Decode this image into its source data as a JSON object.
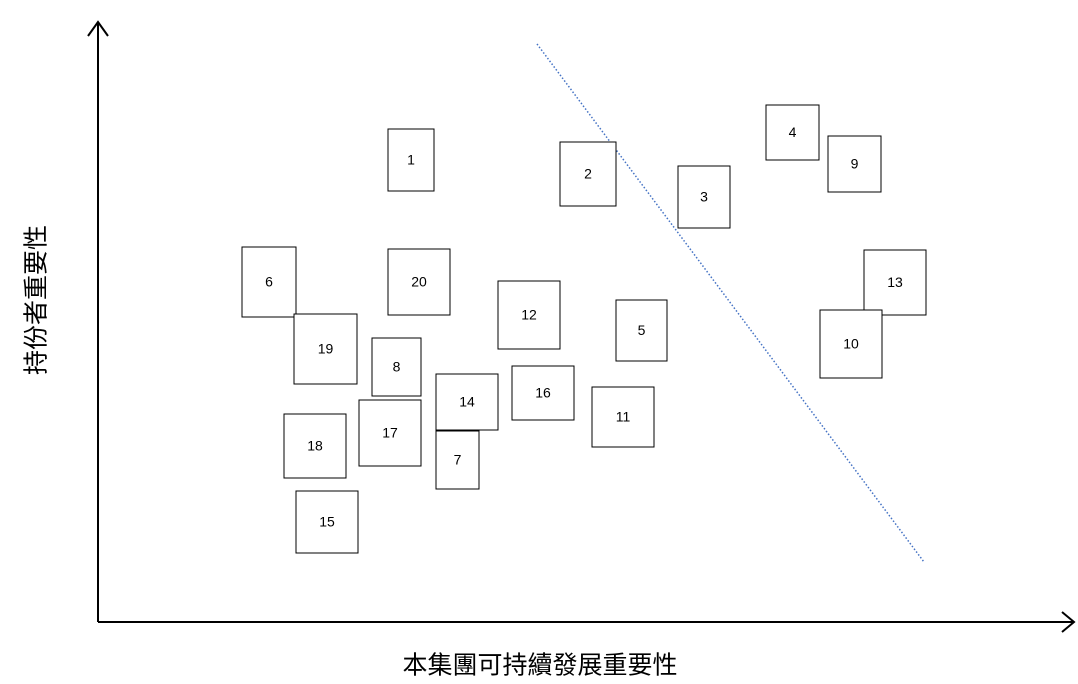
{
  "axes": {
    "x_label": "本集團可持續發展重要性",
    "y_label": "持份者重要性"
  },
  "nodes": [
    {
      "label": "1"
    },
    {
      "label": "2"
    },
    {
      "label": "3"
    },
    {
      "label": "4"
    },
    {
      "label": "5"
    },
    {
      "label": "6"
    },
    {
      "label": "7"
    },
    {
      "label": "8"
    },
    {
      "label": "9"
    },
    {
      "label": "10"
    },
    {
      "label": "11"
    },
    {
      "label": "12"
    },
    {
      "label": "13"
    },
    {
      "label": "14"
    },
    {
      "label": "15"
    },
    {
      "label": "16"
    },
    {
      "label": "17"
    },
    {
      "label": "18"
    },
    {
      "label": "19"
    },
    {
      "label": "20"
    }
  ]
}
